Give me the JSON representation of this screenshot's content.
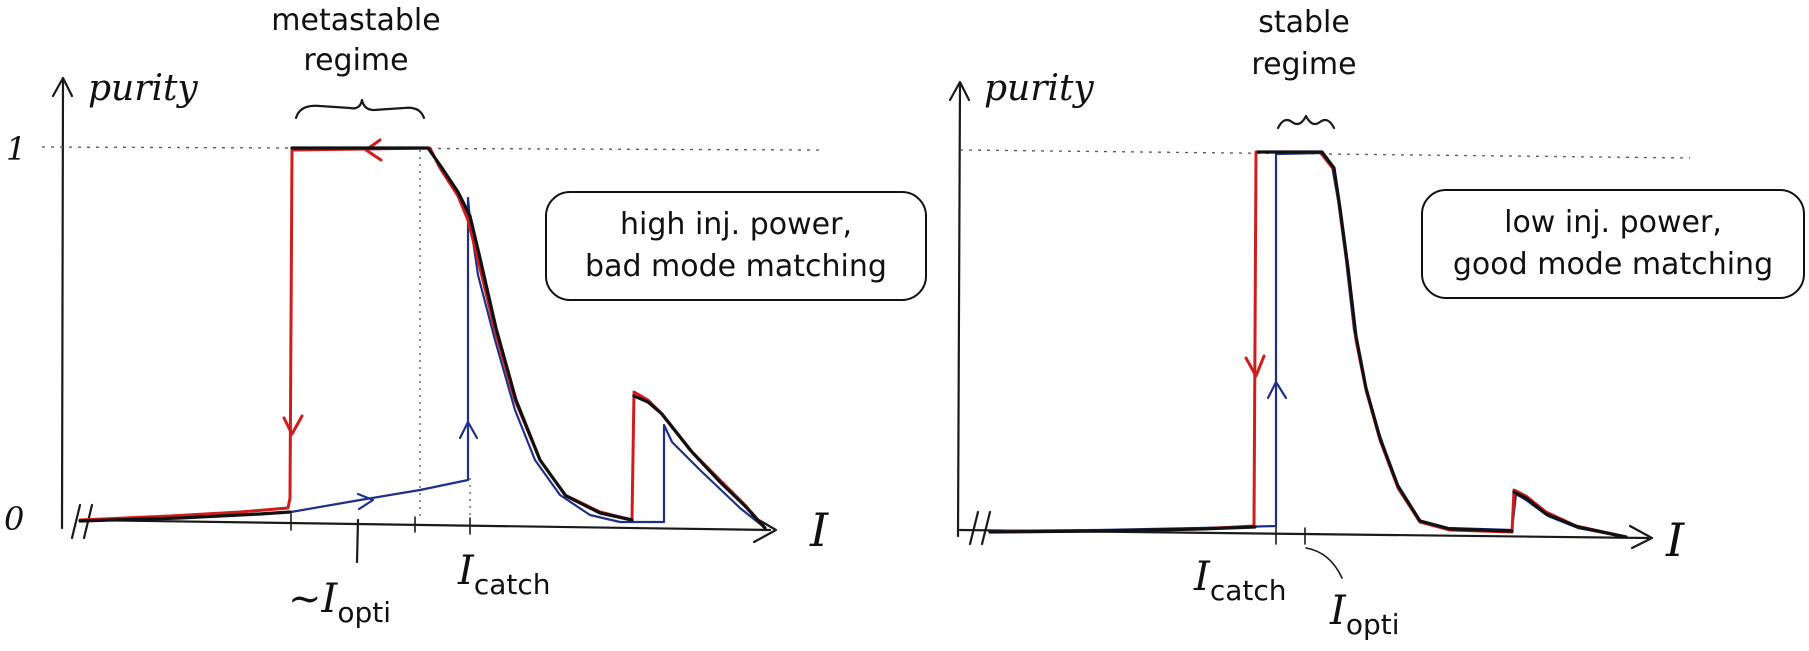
{
  "panels": [
    {
      "y_label": "purity",
      "y_tick_top": "1",
      "y_tick_bottom": "0",
      "x_label": "I",
      "regime_label_line1": "metastable",
      "regime_label_line2": "regime",
      "box_line1": "high inj. power,",
      "box_line2": "bad mode matching",
      "marker_opti_prefix": "~",
      "marker_opti_main": "I",
      "marker_opti_sub": "opti",
      "marker_catch_main": "I",
      "marker_catch_sub": "catch"
    },
    {
      "y_label": "purity",
      "x_label": "I",
      "regime_label_line1": "stable",
      "regime_label_line2": "regime",
      "box_line1": "low inj. power,",
      "box_line2": "good mode matching",
      "marker_catch_main": "I",
      "marker_catch_sub": "catch",
      "marker_opti_main": "I",
      "marker_opti_sub": "opti"
    }
  ],
  "colors": {
    "sweep_down": "#d21c1c",
    "sweep_up": "#1f2f8a",
    "theory": "#111111"
  }
}
